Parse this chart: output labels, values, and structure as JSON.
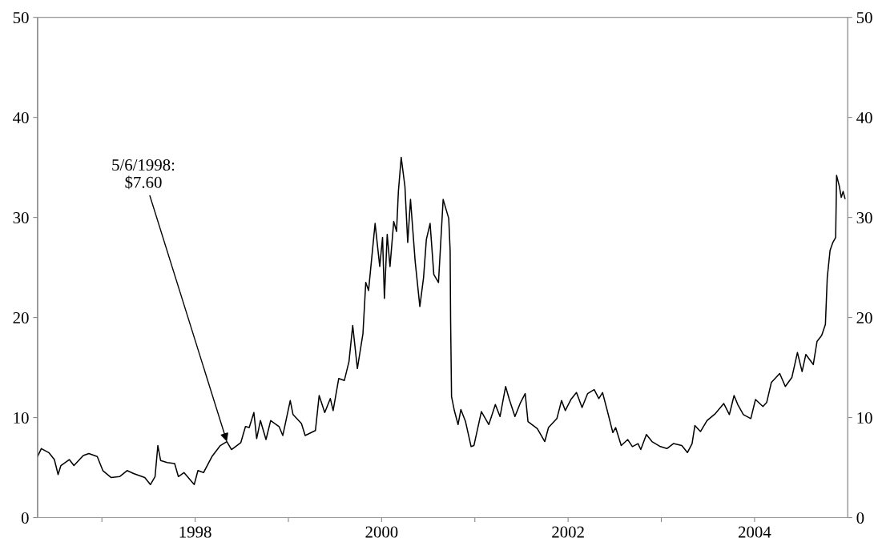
{
  "chart_data": {
    "type": "line",
    "xlim": [
      1996.31,
      2005.0
    ],
    "xticks": [
      {
        "value": 1997,
        "label": null
      },
      1998,
      {
        "value": 1999,
        "label": null
      },
      2000,
      {
        "value": 2001,
        "label": null
      },
      2002,
      {
        "value": 2003,
        "label": null
      },
      2004
    ],
    "ylim": [
      0,
      50
    ],
    "yticks": [
      0,
      10,
      20,
      30,
      40,
      50
    ],
    "y2lim": [
      0,
      50
    ],
    "y2ticks": [
      0,
      10,
      20,
      30,
      40,
      50
    ],
    "grid": false,
    "legend": false,
    "annotations": [
      {
        "text": "5/6/1998:\n$7.60",
        "x": 1998.34,
        "y": 7.6
      }
    ],
    "series": [
      {
        "color": "#000000",
        "x": [
          1996.31,
          1996.35,
          1996.43,
          1996.49,
          1996.53,
          1996.56,
          1996.65,
          1996.7,
          1996.8,
          1996.86,
          1996.95,
          1997.01,
          1997.1,
          1997.19,
          1997.27,
          1997.34,
          1997.46,
          1997.52,
          1997.57,
          1997.6,
          1997.63,
          1997.7,
          1997.78,
          1997.82,
          1997.88,
          1997.99,
          1998.03,
          1998.09,
          1998.18,
          1998.27,
          1998.34,
          1998.39,
          1998.49,
          1998.54,
          1998.58,
          1998.63,
          1998.66,
          1998.7,
          1998.76,
          1998.81,
          1998.9,
          1998.94,
          1999.02,
          1999.05,
          1999.14,
          1999.18,
          1999.29,
          1999.33,
          1999.39,
          1999.45,
          1999.48,
          1999.54,
          1999.6,
          1999.65,
          1999.69,
          1999.74,
          1999.8,
          1999.83,
          1999.86,
          1999.93,
          1999.98,
          2000.01,
          2000.03,
          2000.06,
          2000.09,
          2000.13,
          2000.16,
          2000.18,
          2000.21,
          2000.25,
          2000.28,
          2000.31,
          2000.36,
          2000.41,
          2000.45,
          2000.48,
          2000.52,
          2000.56,
          2000.61,
          2000.66,
          2000.72,
          2000.735,
          2000.74,
          2000.75,
          2000.78,
          2000.82,
          2000.85,
          2000.9,
          2000.96,
          2000.99,
          2001.07,
          2001.15,
          2001.22,
          2001.27,
          2001.33,
          2001.37,
          2001.43,
          2001.49,
          2001.54,
          2001.57,
          2001.67,
          2001.75,
          2001.79,
          2001.88,
          2001.93,
          2001.97,
          2002.03,
          2002.09,
          2002.15,
          2002.21,
          2002.28,
          2002.33,
          2002.37,
          2002.42,
          2002.48,
          2002.51,
          2002.57,
          2002.64,
          2002.69,
          2002.75,
          2002.78,
          2002.84,
          2002.9,
          2002.99,
          2003.06,
          2003.13,
          2003.22,
          2003.28,
          2003.33,
          2003.36,
          2003.42,
          2003.49,
          2003.58,
          2003.67,
          2003.73,
          2003.78,
          2003.82,
          2003.88,
          2003.96,
          2004.01,
          2004.09,
          2004.13,
          2004.18,
          2004.27,
          2004.33,
          2004.4,
          2004.46,
          2004.51,
          2004.55,
          2004.63,
          2004.67,
          2004.72,
          2004.76,
          2004.78,
          2004.81,
          2004.84,
          2004.87,
          2004.88,
          2004.91,
          2004.93,
          2004.95,
          2004.97
        ],
        "values": [
          6.1,
          6.9,
          6.5,
          5.8,
          4.3,
          5.2,
          5.8,
          5.2,
          6.2,
          6.4,
          6.1,
          4.7,
          4.0,
          4.1,
          4.7,
          4.4,
          4.0,
          3.3,
          4.1,
          7.2,
          5.7,
          5.5,
          5.4,
          4.1,
          4.5,
          3.3,
          4.7,
          4.5,
          6.1,
          7.2,
          7.6,
          6.8,
          7.5,
          9.1,
          9.0,
          10.5,
          7.9,
          9.7,
          7.8,
          9.7,
          9.1,
          8.2,
          11.7,
          10.3,
          9.4,
          8.2,
          8.7,
          12.2,
          10.5,
          11.9,
          10.7,
          13.9,
          13.7,
          15.6,
          19.2,
          14.9,
          18.4,
          23.5,
          22.7,
          29.4,
          25.1,
          28.0,
          21.9,
          28.3,
          25.1,
          29.6,
          28.6,
          32.6,
          36.0,
          33.1,
          27.5,
          31.8,
          25.6,
          21.1,
          24.0,
          27.8,
          29.4,
          24.3,
          23.5,
          31.8,
          29.9,
          26.7,
          19.8,
          12.1,
          10.7,
          9.3,
          10.8,
          9.6,
          7.1,
          7.2,
          10.6,
          9.3,
          11.3,
          10.1,
          13.1,
          11.8,
          10.1,
          11.5,
          12.4,
          9.6,
          8.9,
          7.6,
          9.0,
          9.9,
          11.7,
          10.7,
          11.8,
          12.5,
          11.0,
          12.4,
          12.8,
          11.9,
          12.5,
          10.7,
          8.5,
          9.0,
          7.2,
          7.8,
          7.1,
          7.4,
          6.8,
          8.3,
          7.6,
          7.1,
          6.9,
          7.4,
          7.2,
          6.5,
          7.4,
          9.2,
          8.6,
          9.7,
          10.4,
          11.4,
          10.3,
          12.2,
          11.3,
          10.3,
          9.9,
          11.8,
          11.1,
          11.5,
          13.5,
          14.4,
          13.1,
          14.0,
          16.5,
          14.6,
          16.3,
          15.3,
          17.6,
          18.2,
          19.3,
          24.0,
          26.7,
          27.5,
          28.0,
          34.2,
          33.1,
          32.0,
          32.6,
          31.9
        ]
      }
    ]
  }
}
